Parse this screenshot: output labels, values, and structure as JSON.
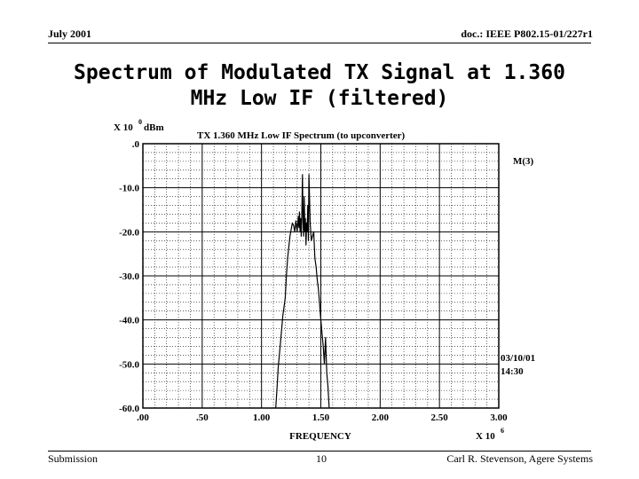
{
  "header": {
    "date": "July 2001",
    "doc_id": "doc.: IEEE P802.15-01/227r1"
  },
  "slide": {
    "title": "Spectrum of Modulated TX Signal at 1.360 MHz Low IF (filtered)"
  },
  "footer": {
    "left": "Submission",
    "page": "10",
    "author": "Carl R. Stevenson, Agere Systems"
  },
  "chart_data": {
    "type": "line",
    "title": "TX 1.360 MHz Low IF Spectrum (to upconverter)",
    "xlabel": "FREQUENCY",
    "x_multiplier": "X 10",
    "x_multiplier_exp": "6",
    "y_unit_prefix": "X 10",
    "y_unit_exp": "0",
    "y_unit": "dBm",
    "marker_label": "M(3)",
    "stamp_date": "03/10/01",
    "stamp_time": "14:30",
    "xlim": [
      0,
      3.0
    ],
    "ylim": [
      -60,
      0
    ],
    "x_ticks": [
      ".00",
      ".50",
      "1.00",
      "1.50",
      "2.00",
      "2.50",
      "3.00"
    ],
    "y_ticks": [
      ".0",
      "-10.0",
      "-20.0",
      "-30.0",
      "-40.0",
      "-50.0",
      "-60.0"
    ],
    "grid": true,
    "series": [
      {
        "color": "#000000",
        "x": [
          1.12,
          1.13,
          1.14,
          1.16,
          1.18,
          1.2,
          1.21,
          1.22,
          1.24,
          1.26,
          1.27,
          1.28,
          1.29,
          1.3,
          1.31,
          1.315,
          1.32,
          1.325,
          1.33,
          1.335,
          1.34,
          1.345,
          1.35,
          1.355,
          1.36,
          1.365,
          1.37,
          1.375,
          1.38,
          1.385,
          1.39,
          1.395,
          1.4,
          1.41,
          1.42,
          1.43,
          1.44,
          1.45,
          1.46,
          1.47,
          1.48,
          1.5,
          1.52,
          1.53,
          1.54,
          1.55,
          1.56,
          1.57
        ],
        "y": [
          -60,
          -56,
          -51,
          -45,
          -39,
          -35,
          -30,
          -26,
          -21,
          -18,
          -18.5,
          -20,
          -17.5,
          -20,
          -16.5,
          -19,
          -15.5,
          -20,
          -17,
          -21,
          -16,
          -7,
          -18,
          -21,
          -12,
          -20,
          -17,
          -23,
          -18,
          -20,
          -14,
          -22,
          -7,
          -18,
          -22,
          -21,
          -20,
          -26,
          -28,
          -31,
          -33,
          -40,
          -46,
          -50,
          -44,
          -52,
          -55,
          -60
        ]
      }
    ]
  }
}
